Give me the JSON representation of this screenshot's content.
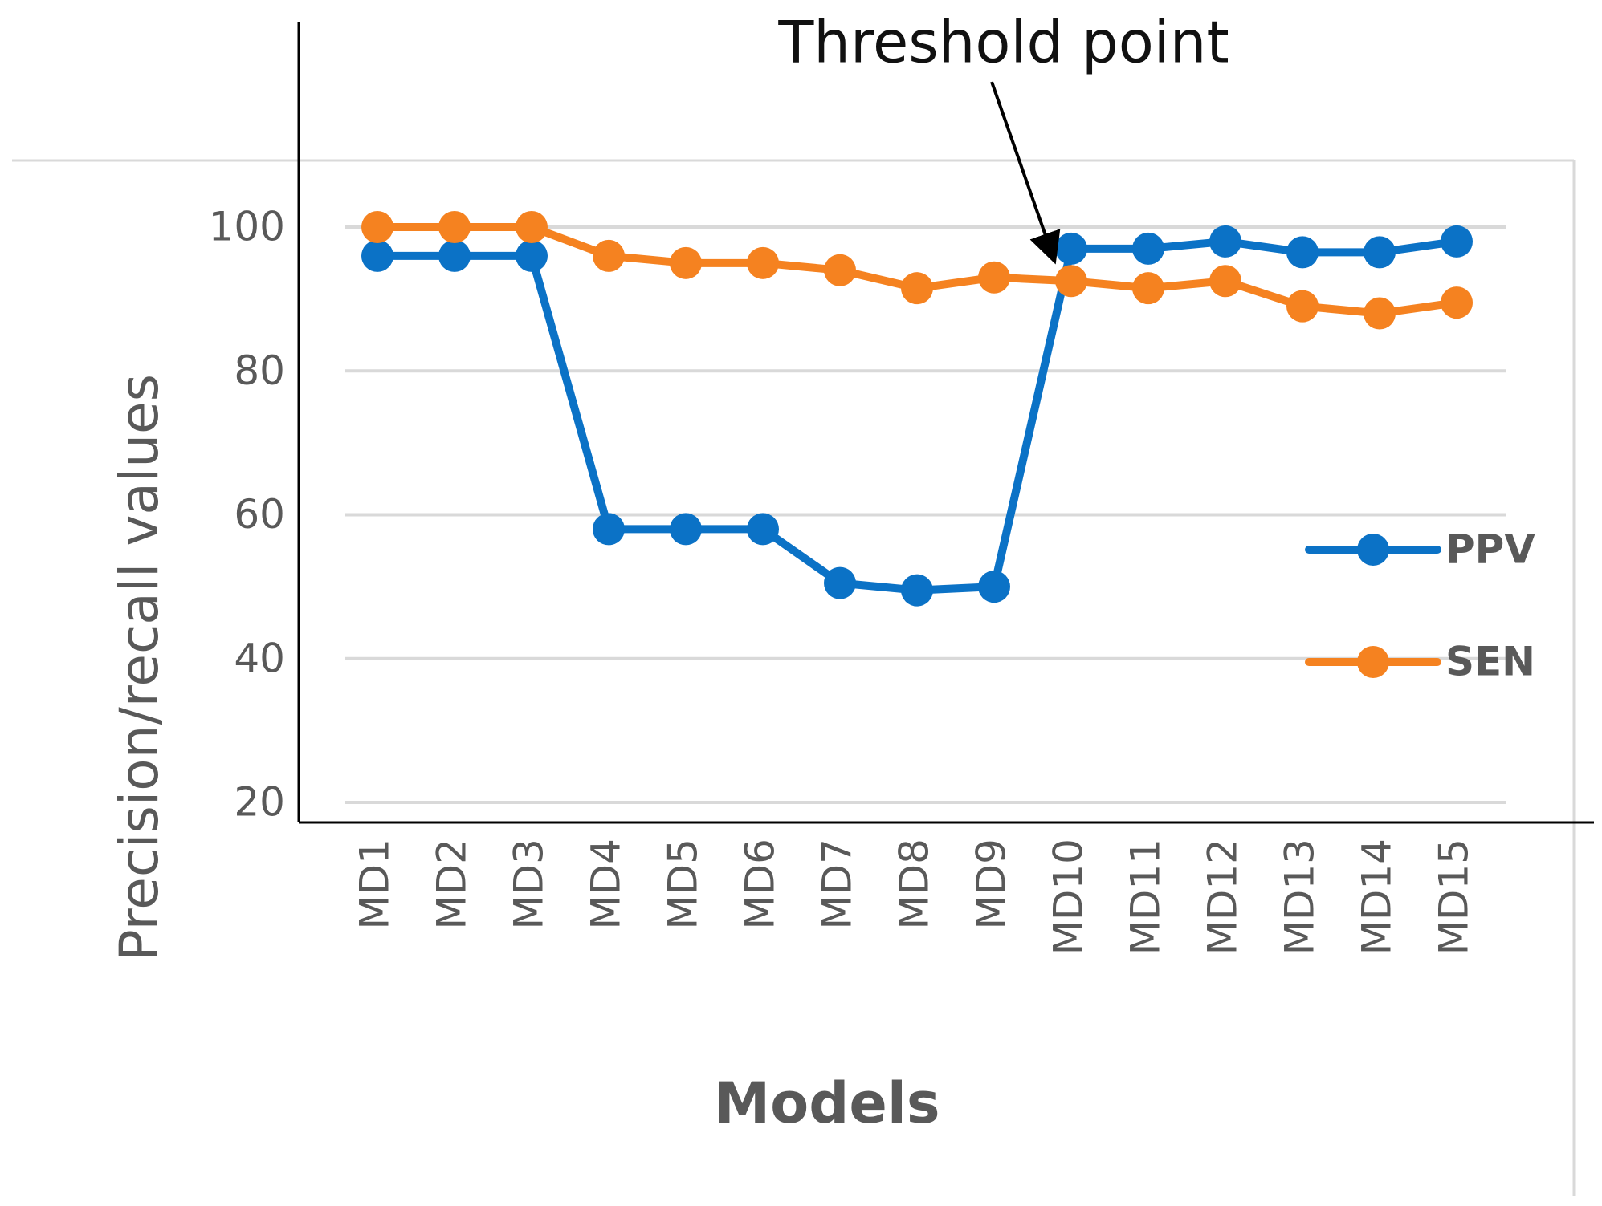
{
  "chart_data": {
    "type": "line",
    "title": "",
    "annotation": "Threshold point",
    "xlabel": "Models",
    "ylabel": "Precision/recall values",
    "categories": [
      "MD1",
      "MD2",
      "MD3",
      "MD4",
      "MD5",
      "MD6",
      "MD7",
      "MD8",
      "MD9",
      "MD10",
      "MD11",
      "MD12",
      "MD13",
      "MD14",
      "MD15"
    ],
    "yticks": [
      "20",
      "40",
      "60",
      "80",
      "100"
    ],
    "ylim": [
      20,
      100
    ],
    "grid": true,
    "legend_position": "right",
    "series": [
      {
        "name": "PPV",
        "color": "#0B72C6",
        "values": [
          96,
          96,
          96,
          58,
          58,
          58,
          50.5,
          49.5,
          50,
          97,
          97,
          98,
          96.5,
          96.5,
          98
        ]
      },
      {
        "name": "SEN",
        "color": "#F58220",
        "values": [
          100,
          100,
          100,
          96,
          95,
          95,
          94,
          91.5,
          93,
          92.5,
          91.5,
          92.5,
          89,
          88,
          89.5
        ]
      }
    ]
  }
}
